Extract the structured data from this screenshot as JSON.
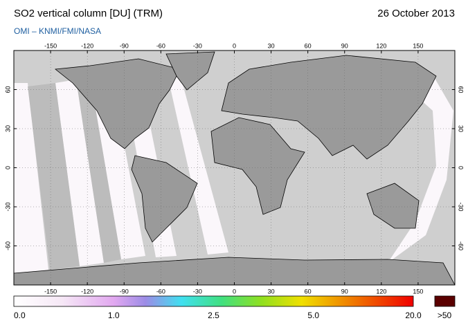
{
  "header": {
    "title": "SO2 vertical column [DU] (TRM)",
    "date": "26 October 2013",
    "credit": "OMI – KNMI/FMI/NASA"
  },
  "map": {
    "lon_ticks": [
      -150,
      -120,
      -90,
      -60,
      -30,
      0,
      30,
      60,
      90,
      120,
      150
    ],
    "lat_ticks": [
      60,
      30,
      0,
      -30,
      -60
    ]
  },
  "colorbar": {
    "labels": [
      "0.0",
      "1.0",
      "2.5",
      "5.0",
      "20.0",
      ">50"
    ]
  }
}
